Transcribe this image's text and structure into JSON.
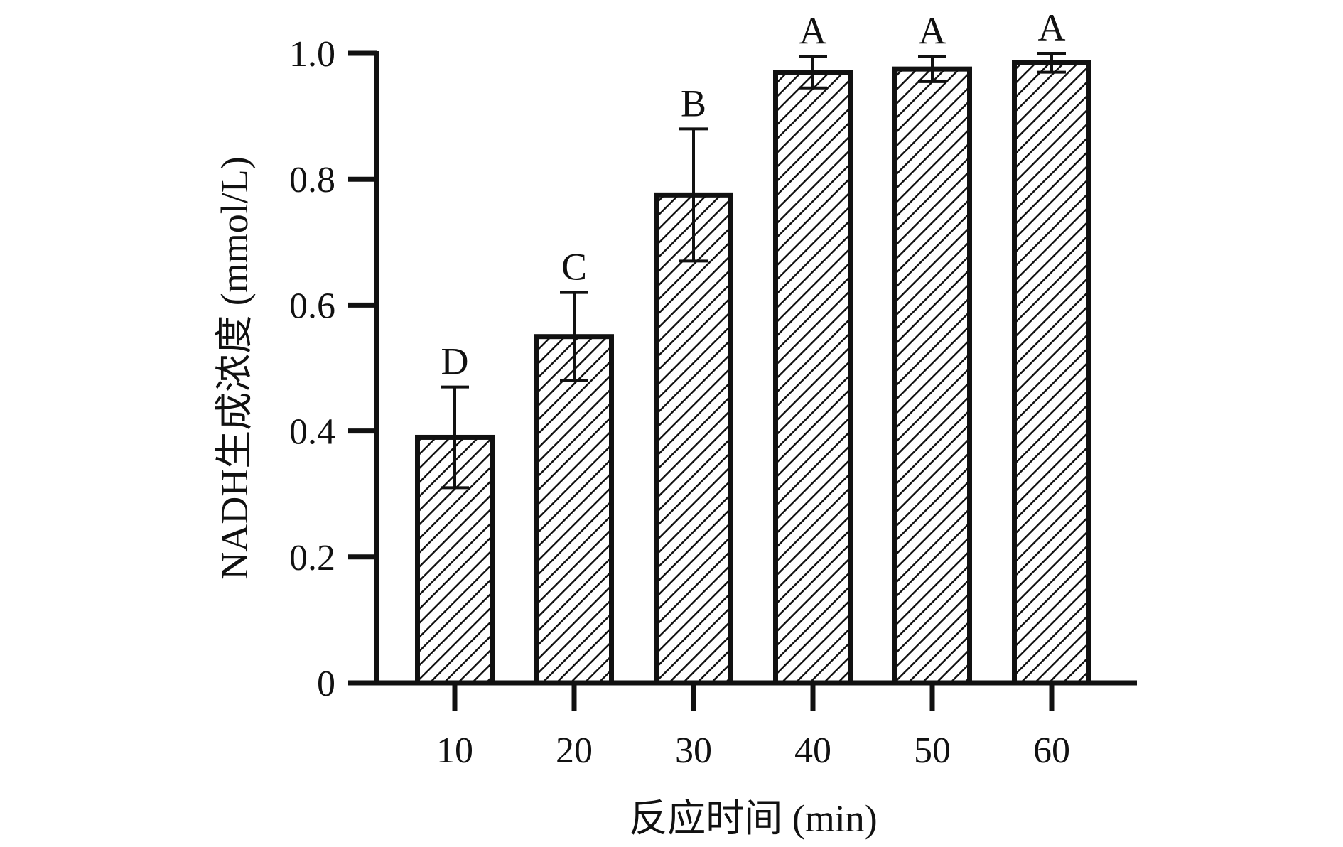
{
  "chart_data": {
    "type": "bar",
    "title": "",
    "xlabel": "反应时间 (min)",
    "ylabel": "NADH生成浓度 (mmol/L)",
    "categories": [
      "10",
      "20",
      "30",
      "40",
      "50",
      "60"
    ],
    "values": [
      0.39,
      0.55,
      0.775,
      0.97,
      0.975,
      0.985
    ],
    "errors": [
      0.08,
      0.07,
      0.105,
      0.025,
      0.02,
      0.015
    ],
    "significance_labels": [
      "D",
      "C",
      "B",
      "A",
      "A",
      "A"
    ],
    "ylim": [
      0,
      1.0
    ],
    "yticks": [
      0,
      0.2,
      0.4,
      0.6,
      0.8,
      1.0
    ],
    "ytick_labels": [
      "0",
      "0.2",
      "0.4",
      "0.6",
      "0.8",
      "1.0"
    ],
    "grid": false,
    "legend": "none",
    "bar_fill": "diagonal-hatch",
    "colors": {
      "stroke": "#111111",
      "hatch": "#111111",
      "background": "#ffffff"
    }
  }
}
